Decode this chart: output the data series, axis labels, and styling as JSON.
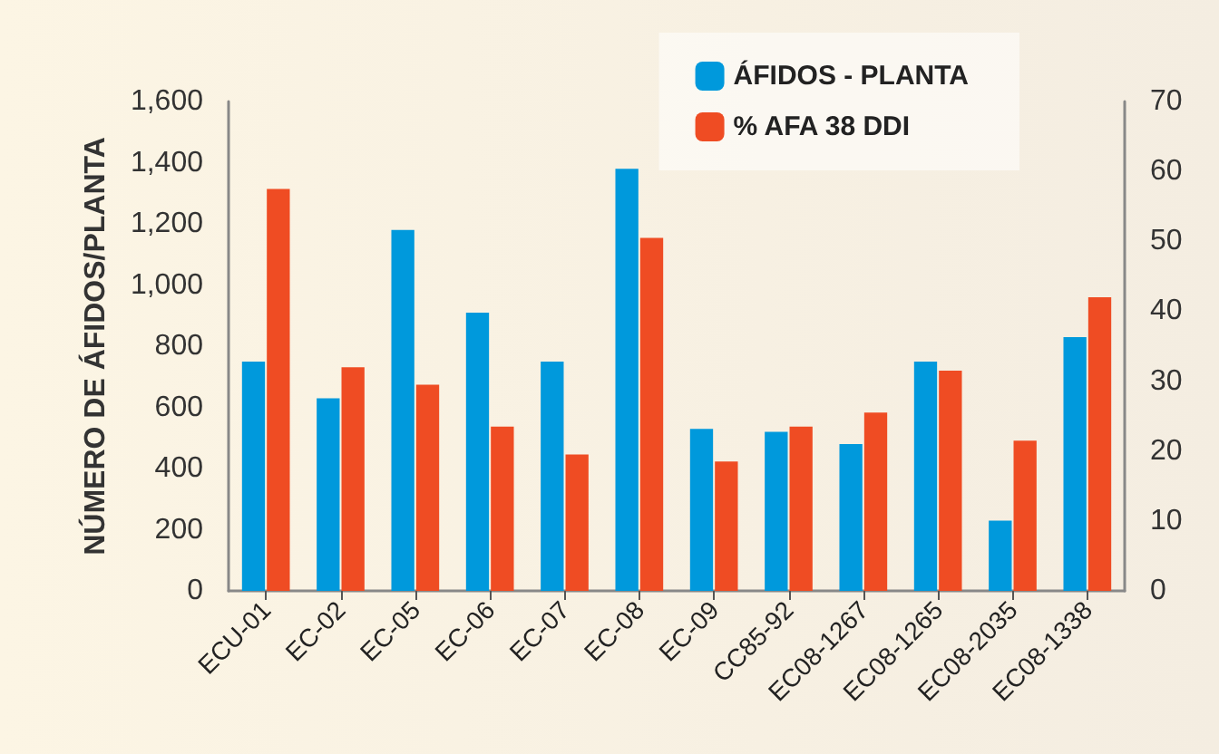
{
  "chart_data": {
    "type": "bar",
    "ylabel": "NÚMERO DE ÁFIDOS/PLANTA",
    "categories": [
      "ECU-01",
      "EC-02",
      "EC-05",
      "EC-06",
      "EC-07",
      "EC-08",
      "EC-09",
      "CC85-92",
      "EC08-1267",
      "EC08-1265",
      "EC08-2035",
      "EC08-1338"
    ],
    "series": [
      {
        "name": "ÁFIDOS - PLANTA",
        "color": "#0099dc",
        "values": [
          750,
          630,
          1180,
          910,
          750,
          1380,
          530,
          520,
          480,
          750,
          230,
          830
        ]
      },
      {
        "name": "% AFA 38 DDI",
        "color": "#ef4c23",
        "axis": "y2",
        "values": [
          57.5,
          32,
          29.5,
          23.5,
          19.5,
          50.5,
          18.5,
          23.5,
          25.5,
          31.5,
          21.5,
          42
        ]
      }
    ],
    "ylim": [
      0,
      1600
    ],
    "yticks": [
      0,
      {
        "value": 200,
        "label": "200"
      },
      {
        "value": 400,
        "label": "400"
      },
      {
        "value": 600,
        "label": "600"
      },
      {
        "value": 800,
        "label": "800"
      },
      {
        "value": 1000,
        "label": "1,000"
      },
      {
        "value": 1200,
        "label": "1,200"
      },
      {
        "value": 1400,
        "label": "1,400"
      },
      {
        "value": 1600,
        "label": "1,600"
      }
    ],
    "y2lim": [
      0,
      70
    ],
    "y2ticks": [
      0,
      10,
      20,
      30,
      40,
      50,
      60,
      70
    ],
    "grid": false,
    "legend": "top right"
  }
}
